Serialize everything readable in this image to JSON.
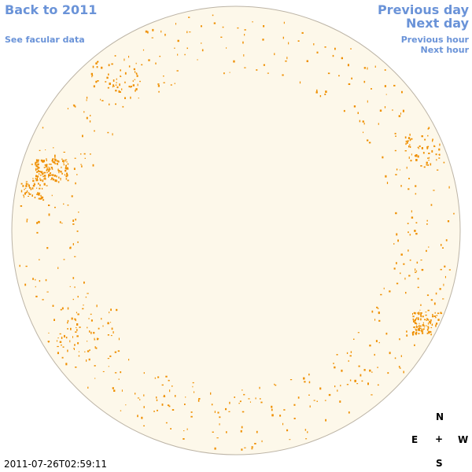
{
  "nav": {
    "back_label": "Back to 2011",
    "facular_label": "See facular data",
    "prev_day_label": "Previous day",
    "next_day_label": "Next day",
    "prev_hour_label": "Previous hour",
    "next_hour_label": "Next hour"
  },
  "timestamp": "2011-07-26T02:59:11",
  "compass": {
    "north": "N",
    "east": "E",
    "center": "+",
    "west": "W",
    "south": "S"
  },
  "colors": {
    "disk_fill": "#fdf8ea",
    "disk_border": "#bcb4a6",
    "feature": "#ef8f00",
    "link": "#6a93d8"
  }
}
